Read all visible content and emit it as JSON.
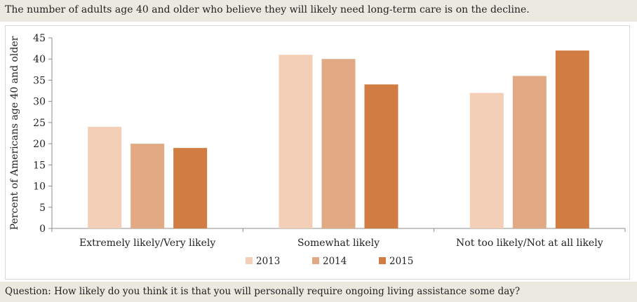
{
  "header": {
    "title": "The number of adults age 40 and older who believe they will likely need long-term care is on the decline."
  },
  "footer": {
    "question": "Question: How likely do you think it is that you will personally require ongoing living assistance some day?"
  },
  "chart_data": {
    "type": "bar",
    "categories": [
      "Extremely likely/Very likely",
      "Somewhat likely",
      "Not too likely/Not at all likely"
    ],
    "series": [
      {
        "name": "2013",
        "values": [
          24,
          41,
          32
        ],
        "color": "#f2cfb6"
      },
      {
        "name": "2014",
        "values": [
          20,
          40,
          36
        ],
        "color": "#e1aa85"
      },
      {
        "name": "2015",
        "values": [
          19,
          34,
          42
        ],
        "color": "#d07c42"
      }
    ],
    "ylabel": "Percent of Americans age 40 and older",
    "xlabel": "",
    "ylim": [
      0,
      45
    ],
    "yticks": [
      0,
      5,
      10,
      15,
      20,
      25,
      30,
      35,
      40,
      45
    ],
    "grid": false,
    "legend": "bottom-center"
  }
}
